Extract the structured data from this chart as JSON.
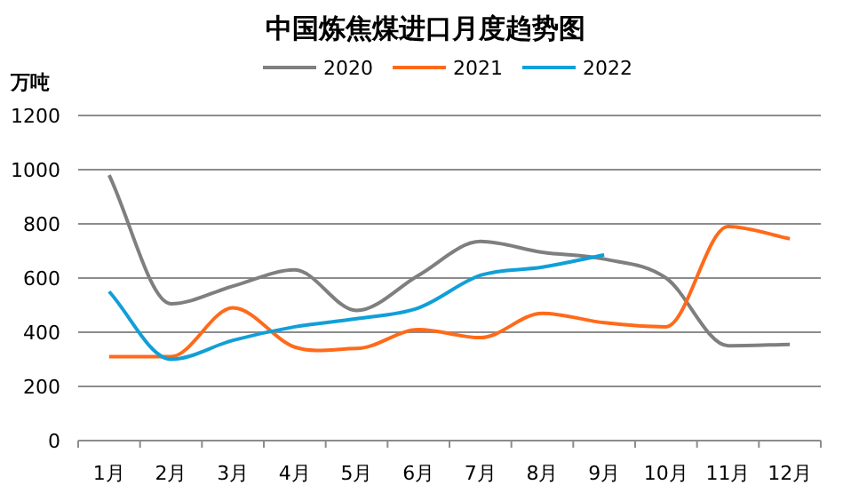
{
  "chart_data": {
    "type": "line",
    "title": "中国炼焦煤进口月度趋势图",
    "ylabel": "万吨",
    "categories": [
      "1月",
      "2月",
      "3月",
      "4月",
      "5月",
      "6月",
      "7月",
      "8月",
      "9月",
      "10月",
      "11月",
      "12月"
    ],
    "series": [
      {
        "name": "2020",
        "color": "#7f7f7f",
        "values": [
          980,
          505,
          570,
          630,
          480,
          610,
          735,
          695,
          670,
          600,
          350,
          355
        ]
      },
      {
        "name": "2021",
        "color": "#ff6a1a",
        "values": [
          310,
          310,
          490,
          345,
          340,
          410,
          380,
          470,
          435,
          420,
          790,
          745
        ]
      },
      {
        "name": "2022",
        "color": "#119fd8",
        "values": [
          550,
          300,
          370,
          420,
          450,
          490,
          610,
          640,
          685,
          null,
          null,
          null
        ]
      }
    ],
    "ylim": [
      0,
      1200
    ],
    "yticks": [
      0,
      200,
      400,
      600,
      800,
      1000,
      1200
    ],
    "grid": "y",
    "legend": "top",
    "marker": "none",
    "line_style": "solid"
  }
}
